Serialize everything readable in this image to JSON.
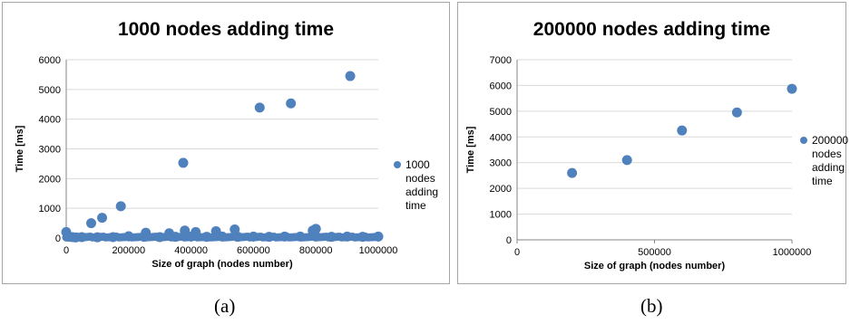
{
  "chart_data": [
    {
      "type": "scatter",
      "title": "1000 nodes adding time",
      "xlabel": "Size of graph (nodes number)",
      "ylabel": "Time [ms]",
      "xlim": [
        0,
        1000000
      ],
      "ylim": [
        0,
        6000
      ],
      "xticks": [
        "0",
        "200000",
        "400000",
        "600000",
        "800000",
        "1000000"
      ],
      "yticks": [
        "0",
        "1000",
        "2000",
        "3000",
        "4000",
        "5000",
        "6000"
      ],
      "legend": "top-right",
      "series": [
        {
          "name": "1000 nodes adding time",
          "color": "#4f81bd",
          "points": [
            [
              0,
              200
            ],
            [
              5000,
              60
            ],
            [
              10000,
              40
            ],
            [
              20000,
              30
            ],
            [
              30000,
              20
            ],
            [
              80000,
              500
            ],
            [
              115000,
              680
            ],
            [
              175000,
              1070
            ],
            [
              200000,
              60
            ],
            [
              255000,
              180
            ],
            [
              330000,
              160
            ],
            [
              375000,
              2530
            ],
            [
              380000,
              250
            ],
            [
              415000,
              200
            ],
            [
              480000,
              230
            ],
            [
              540000,
              290
            ],
            [
              620000,
              4390
            ],
            [
              720000,
              4530
            ],
            [
              790000,
              250
            ],
            [
              800000,
              310
            ],
            [
              910000,
              5450
            ],
            [
              50000,
              30
            ],
            [
              100000,
              25
            ],
            [
              150000,
              30
            ],
            [
              250000,
              40
            ],
            [
              300000,
              30
            ],
            [
              350000,
              40
            ],
            [
              400000,
              50
            ],
            [
              450000,
              40
            ],
            [
              500000,
              50
            ],
            [
              550000,
              40
            ],
            [
              600000,
              50
            ],
            [
              650000,
              40
            ],
            [
              700000,
              50
            ],
            [
              750000,
              50
            ],
            [
              800000,
              60
            ],
            [
              850000,
              40
            ],
            [
              900000,
              50
            ],
            [
              950000,
              40
            ],
            [
              1000000,
              50
            ]
          ]
        }
      ]
    },
    {
      "type": "scatter",
      "title": "200000 nodes adding time",
      "xlabel": "Size of graph (nodes number)",
      "ylabel": "Time [ms]",
      "xlim": [
        0,
        1000000
      ],
      "ylim": [
        0,
        7000
      ],
      "xticks": [
        "0",
        "500000",
        "1000000"
      ],
      "yticks": [
        "0",
        "1000",
        "2000",
        "3000",
        "4000",
        "5000",
        "6000",
        "7000"
      ],
      "legend": "right",
      "series": [
        {
          "name": "200000 nodes adding time",
          "color": "#4f81bd",
          "points": [
            [
              200000,
              2600
            ],
            [
              400000,
              3100
            ],
            [
              600000,
              4250
            ],
            [
              800000,
              4950
            ],
            [
              1000000,
              5870
            ]
          ]
        }
      ]
    }
  ],
  "legend_a_lines": [
    "1000",
    "nodes",
    "adding",
    "time"
  ],
  "legend_b_lines": [
    "200000",
    "nodes",
    "adding",
    "time"
  ],
  "captions": {
    "a": "(a)",
    "b": "(b)"
  }
}
